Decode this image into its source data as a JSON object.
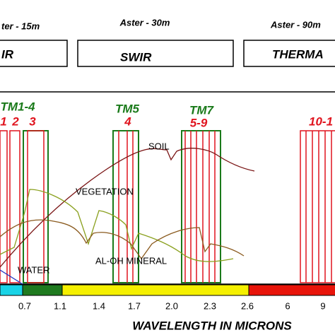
{
  "header": {
    "sensors": [
      "ter - 15m",
      "Aster - 30m",
      "Aster - 90m"
    ],
    "regions": [
      "IR",
      "SWIR",
      "THERMA"
    ]
  },
  "bands": {
    "groups": [
      {
        "label": "TM1-4",
        "numbers": [
          "1",
          "2",
          "3"
        ]
      },
      {
        "label": "TM5",
        "numbers": [
          "4"
        ]
      },
      {
        "label": "TM7",
        "numbers": [
          "5-9"
        ]
      },
      {
        "label": null,
        "numbers": [
          "10-1"
        ]
      }
    ]
  },
  "curves": [
    "SOIL",
    "VEGETATION",
    "AL-OH MINERAL",
    "WATER"
  ],
  "axis": {
    "ticks": [
      "0.7",
      "1.1",
      "1.4",
      "1.7",
      "2.0",
      "2.3",
      "2.6",
      "6",
      "9"
    ],
    "title": "WAVELENGTH IN MICRONS"
  }
}
